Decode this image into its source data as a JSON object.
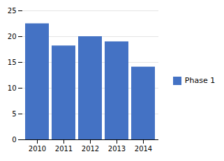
{
  "chart_data": {
    "type": "bar",
    "categories": [
      "2010",
      "2011",
      "2012",
      "2013",
      "2014"
    ],
    "series": [
      {
        "name": "Phase 1",
        "color": "#4472C4",
        "values": [
          22.5,
          18.2,
          20.0,
          19.0,
          14.1
        ]
      }
    ],
    "ylim": [
      0,
      25
    ],
    "yticks": [
      0,
      5,
      10,
      15,
      20,
      25
    ],
    "grid": true,
    "legend": "right"
  }
}
